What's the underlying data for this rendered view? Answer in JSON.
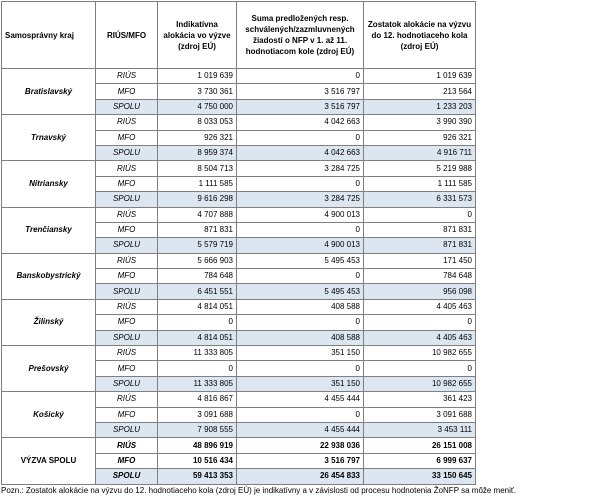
{
  "table": {
    "headers": [
      "Samosprávny kraj",
      "RIÚS/MFO",
      "Indikatívna alokácia vo výzve (zdroj EÚ)",
      "Suma predložených resp. schválených/zazmluvnených žiadostí o NFP  v 1. až 11. hodnotiacom kole (zdroj EÚ)",
      "Zostatok alokácie na výzvu do 12. hodnotiaceho kola (zdroj EÚ)"
    ],
    "groups": [
      {
        "region": "Bratislavský",
        "rows": [
          {
            "type": "RIÚS",
            "values": [
              "1 019 639",
              "0",
              "1 019 639"
            ]
          },
          {
            "type": "MFO",
            "values": [
              "3 730 361",
              "3 516 797",
              "213 564"
            ]
          },
          {
            "type": "SPOLU",
            "values": [
              "4 750 000",
              "3 516 797",
              "1 233 203"
            ]
          }
        ]
      },
      {
        "region": "Trnavský",
        "rows": [
          {
            "type": "RIÚS",
            "values": [
              "8 033 053",
              "4 042 663",
              "3 990 390"
            ]
          },
          {
            "type": "MFO",
            "values": [
              "926 321",
              "0",
              "926 321"
            ]
          },
          {
            "type": "SPOLU",
            "values": [
              "8 959 374",
              "4 042 663",
              "4 916 711"
            ]
          }
        ]
      },
      {
        "region": "Nitriansky",
        "rows": [
          {
            "type": "RIÚS",
            "values": [
              "8 504 713",
              "3 284 725",
              "5 219 988"
            ]
          },
          {
            "type": "MFO",
            "values": [
              "1 111 585",
              "0",
              "1 111 585"
            ]
          },
          {
            "type": "SPOLU",
            "values": [
              "9 616 298",
              "3 284 725",
              "6 331 573"
            ]
          }
        ]
      },
      {
        "region": "Trenčiansky",
        "rows": [
          {
            "type": "RIÚS",
            "values": [
              "4 707 888",
              "4 900 013",
              "0"
            ]
          },
          {
            "type": "MFO",
            "values": [
              "871 831",
              "0",
              "871 831"
            ]
          },
          {
            "type": "SPOLU",
            "values": [
              "5 579 719",
              "4 900 013",
              "871 831"
            ]
          }
        ]
      },
      {
        "region": "Banskobystrický",
        "rows": [
          {
            "type": "RIÚS",
            "values": [
              "5 666 903",
              "5 495 453",
              "171 450"
            ]
          },
          {
            "type": "MFO",
            "values": [
              "784 648",
              "0",
              "784 648"
            ]
          },
          {
            "type": "SPOLU",
            "values": [
              "6 451 551",
              "5 495 453",
              "956 098"
            ]
          }
        ]
      },
      {
        "region": "Žilinský",
        "rows": [
          {
            "type": "RIÚS",
            "values": [
              "4 814 051",
              "408 588",
              "4 405 463"
            ]
          },
          {
            "type": "MFO",
            "values": [
              "0",
              "0",
              "0"
            ]
          },
          {
            "type": "SPOLU",
            "values": [
              "4 814 051",
              "408 588",
              "4 405 463"
            ]
          }
        ]
      },
      {
        "region": "Prešovský",
        "rows": [
          {
            "type": "RIÚS",
            "values": [
              "11 333 805",
              "351 150",
              "10 982 655"
            ]
          },
          {
            "type": "MFO",
            "values": [
              "0",
              "0",
              "0"
            ]
          },
          {
            "type": "SPOLU",
            "values": [
              "11 333 805",
              "351 150",
              "10 982 655"
            ]
          }
        ]
      },
      {
        "region": "Košický",
        "rows": [
          {
            "type": "RIÚS",
            "values": [
              "4 816 867",
              "4 455 444",
              "361 423"
            ]
          },
          {
            "type": "MFO",
            "values": [
              "3 091 688",
              "0",
              "3 091 688"
            ]
          },
          {
            "type": "SPOLU",
            "values": [
              "7 908 555",
              "4 455 444",
              "3 453 111"
            ]
          }
        ]
      },
      {
        "region": "VÝZVA SPOLU",
        "rows": [
          {
            "type": "RIÚS",
            "values": [
              "48 896 919",
              "22 938 036",
              "26 151 008"
            ]
          },
          {
            "type": "MFO",
            "values": [
              "10 516 434",
              "3 516 797",
              "6 999 637"
            ]
          },
          {
            "type": "SPOLU",
            "values": [
              "59 413 353",
              "26 454 833",
              "33 150 645"
            ]
          }
        ]
      }
    ]
  },
  "note": "Pozn.: Zostatok alokácie na výzvu do 12. hodnotiaceho kola (zdroj EÚ) je indikatívny a v závislosti od procesu hodnotenia ŽoNFP sa môže meniť."
}
